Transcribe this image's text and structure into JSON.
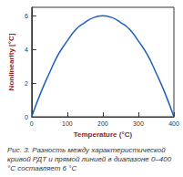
{
  "chart_data": {
    "type": "line",
    "x_label": "Temperature (°C)",
    "y_label": "Nonlinearity [°C]",
    "caption": "Рис. 3. Разность между характеристической кривой РДТ и прямой линией в диапазоне 0–400 °C составляет 6 °C",
    "x": [
      0,
      25,
      50,
      75,
      100,
      125,
      150,
      175,
      200,
      225,
      250,
      275,
      300,
      325,
      350,
      375,
      400
    ],
    "values": [
      0,
      1.4,
      2.6,
      3.7,
      4.5,
      5.2,
      5.6,
      5.9,
      6,
      5.9,
      5.6,
      5.2,
      4.5,
      3.7,
      2.6,
      1.4,
      0
    ],
    "color": "#1f5fbf",
    "xlim": [
      0,
      400
    ],
    "xticks": [
      0,
      100,
      200,
      300,
      400
    ],
    "ylim": [
      0,
      6.5
    ],
    "yticks": [
      0,
      2,
      4,
      6
    ],
    "grid": false
  }
}
